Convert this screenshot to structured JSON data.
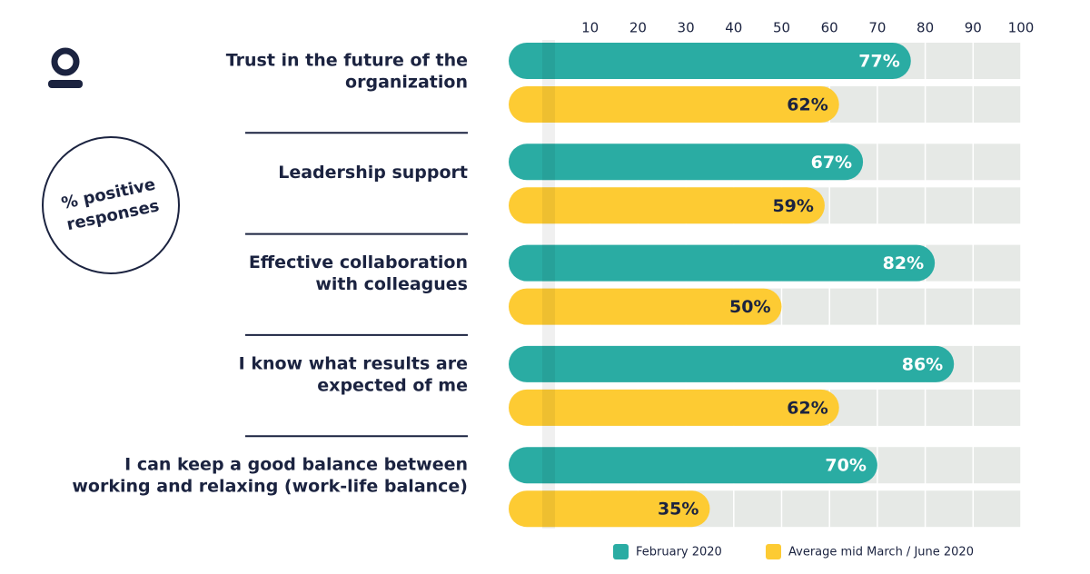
{
  "chart_data": {
    "type": "bar",
    "orientation": "horizontal",
    "annotation": [
      "% positive",
      "responses"
    ],
    "categories": [
      [
        "Trust in the future of the",
        "organization"
      ],
      [
        "Leadership support"
      ],
      [
        "Effective collaboration",
        "with colleagues"
      ],
      [
        "I know what results are",
        "expected of me"
      ],
      [
        "I can keep a good balance between",
        "working and relaxing (work-life balance)"
      ]
    ],
    "series": [
      {
        "name": "February 2020",
        "color": "#2aaca3",
        "values": [
          77,
          67,
          82,
          86,
          70
        ],
        "value_labels": [
          "77%",
          "67%",
          "82%",
          "86%",
          "70%"
        ]
      },
      {
        "name": "Average mid March / June 2020",
        "color": "#fdcb33",
        "values": [
          62,
          59,
          50,
          62,
          35
        ],
        "value_labels": [
          "62%",
          "59%",
          "50%",
          "62%",
          "35%"
        ]
      }
    ],
    "xlim": [
      0,
      100
    ],
    "xticks": [
      10,
      20,
      30,
      40,
      50,
      60,
      70,
      80,
      90,
      100
    ],
    "grid": true
  }
}
